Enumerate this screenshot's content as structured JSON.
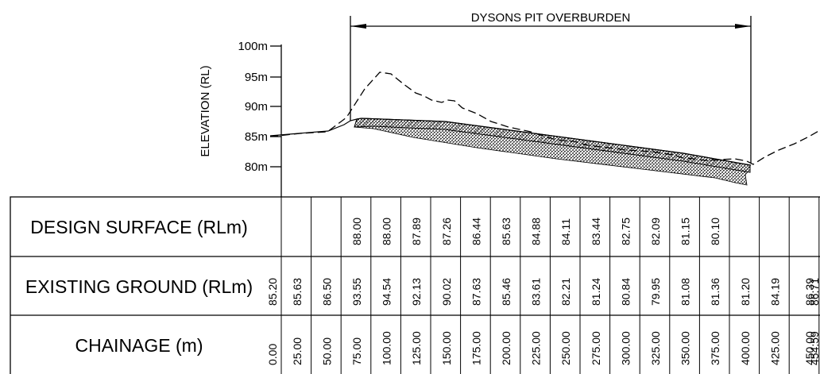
{
  "title": "DYSONS PIT OVERBURDEN",
  "y_axis": {
    "label": "ELEVATION (RL)",
    "ticks": [
      "100m",
      "95m",
      "90m",
      "85m",
      "80m"
    ]
  },
  "rows": [
    {
      "label": "DESIGN SURFACE (RLm)",
      "values": [
        "",
        "",
        "",
        "88.00",
        "88.00",
        "87.89",
        "87.26",
        "86.44",
        "85.63",
        "84.88",
        "84.11",
        "83.44",
        "82.75",
        "82.09",
        "81.15",
        "80.10",
        "",
        "",
        "",
        ""
      ]
    },
    {
      "label": "EXISTING GROUND (RLm)",
      "values": [
        "85.20",
        "85.63",
        "86.50",
        "93.55",
        "94.54",
        "92.13",
        "90.02",
        "87.63",
        "85.46",
        "83.61",
        "82.21",
        "81.24",
        "80.84",
        "79.95",
        "81.08",
        "81.36",
        "81.20",
        "84.19",
        "86.39",
        "86.71"
      ]
    },
    {
      "label": "CHAINAGE (m)",
      "values": [
        "0.00",
        "25.00",
        "50.00",
        "75.00",
        "100.00",
        "125.00",
        "150.00",
        "175.00",
        "200.00",
        "225.00",
        "250.00",
        "275.00",
        "300.00",
        "325.00",
        "350.00",
        "375.00",
        "400.00",
        "425.00",
        "450.00",
        "454.59"
      ]
    }
  ],
  "colors": {
    "line": "#000000",
    "background": "#ffffff"
  }
}
